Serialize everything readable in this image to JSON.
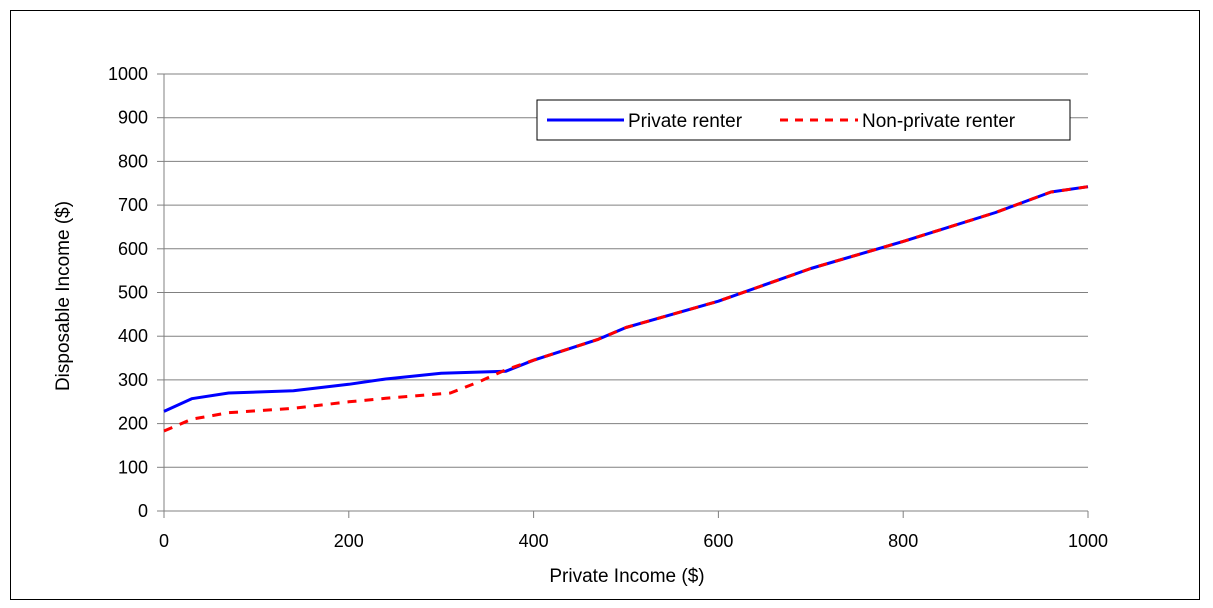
{
  "chart_data": {
    "type": "line",
    "title": "",
    "xlabel": "Private Income ($)",
    "ylabel": "Disposable Income ($)",
    "xlim": [
      0,
      1000
    ],
    "ylim": [
      0,
      1000
    ],
    "x_ticks": [
      "0",
      "200",
      "400",
      "600",
      "800",
      "1000"
    ],
    "y_ticks": [
      "0",
      "100",
      "200",
      "300",
      "400",
      "500",
      "600",
      "700",
      "800",
      "900",
      "1000"
    ],
    "grid": "horizontal",
    "legend_position": "top-right",
    "series": [
      {
        "name": "Private renter",
        "color": "#0000ff",
        "style": "solid",
        "points": [
          [
            0,
            228
          ],
          [
            30,
            257
          ],
          [
            70,
            270
          ],
          [
            140,
            275
          ],
          [
            200,
            290
          ],
          [
            240,
            302
          ],
          [
            300,
            315
          ],
          [
            370,
            320
          ],
          [
            400,
            345
          ],
          [
            470,
            393
          ],
          [
            500,
            420
          ],
          [
            600,
            480
          ],
          [
            700,
            555
          ],
          [
            800,
            617
          ],
          [
            900,
            683
          ],
          [
            960,
            730
          ],
          [
            1000,
            742
          ]
        ]
      },
      {
        "name": "Non-private renter",
        "color": "#ff0000",
        "style": "dashed",
        "points": [
          [
            0,
            183
          ],
          [
            30,
            210
          ],
          [
            70,
            225
          ],
          [
            140,
            235
          ],
          [
            200,
            250
          ],
          [
            240,
            258
          ],
          [
            310,
            270
          ],
          [
            340,
            295
          ],
          [
            370,
            323
          ],
          [
            400,
            345
          ],
          [
            470,
            393
          ],
          [
            500,
            420
          ],
          [
            600,
            480
          ],
          [
            700,
            555
          ],
          [
            800,
            617
          ],
          [
            900,
            683
          ],
          [
            960,
            730
          ],
          [
            1000,
            742
          ]
        ]
      }
    ]
  }
}
